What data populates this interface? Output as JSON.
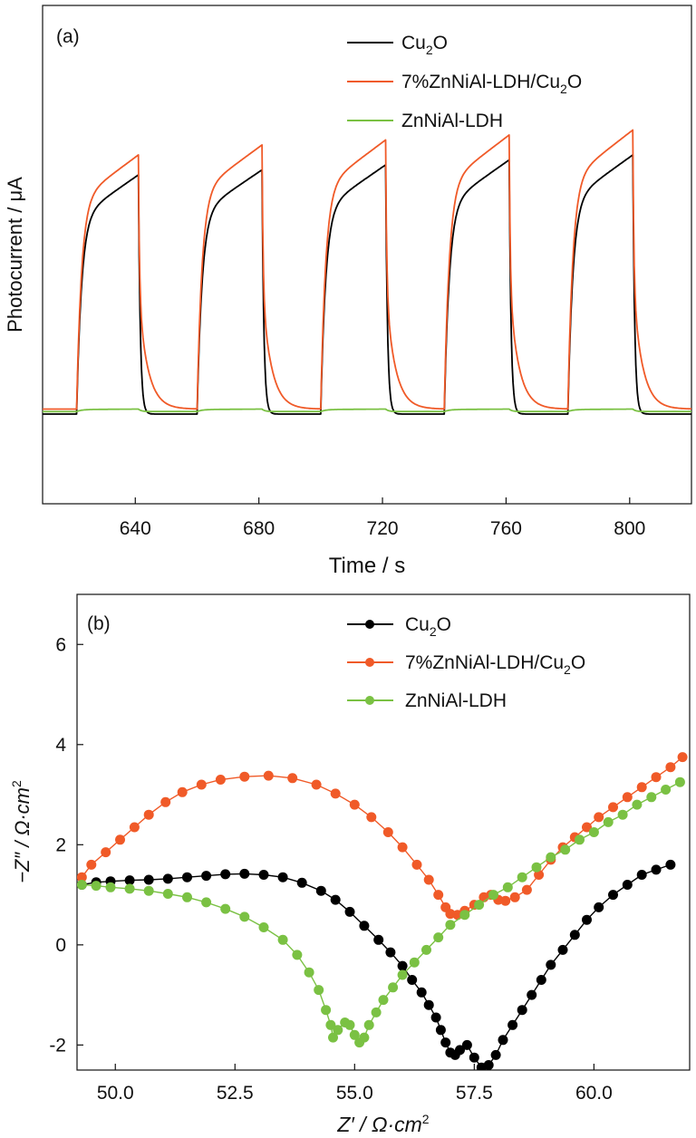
{
  "chart_data": [
    {
      "type": "line",
      "panel_label": "(a)",
      "xlabel": "Time / s",
      "ylabel": "Photocurrent / μA",
      "xlim": [
        610,
        820
      ],
      "ylim": [
        0,
        1
      ],
      "xticks": [
        "640",
        "680",
        "720",
        "760",
        "800"
      ],
      "xtick_values": [
        640,
        680,
        720,
        760,
        800
      ],
      "yticks_shown": false,
      "legend_placement": "top-right",
      "light_on_off": {
        "on_times": [
          621,
          660,
          700,
          740,
          780
        ],
        "off_times": [
          641,
          681,
          721,
          761,
          801
        ]
      },
      "series": [
        {
          "name": "Cu2O",
          "legend_label": "Cu",
          "legend_sub": "2",
          "legend_tail": "O",
          "color": "#000000",
          "baseline": 0.18,
          "peak_values": [
            0.66,
            0.67,
            0.68,
            0.69,
            0.7
          ],
          "fall_tau": 0.6
        },
        {
          "name": "7%ZnNiAl-LDH/Cu2O",
          "legend_label": "7%ZnNiAl-LDH/Cu",
          "legend_sub": "2",
          "legend_tail": "O",
          "color": "#f05a28",
          "baseline": 0.19,
          "peak_values": [
            0.7,
            0.72,
            0.73,
            0.74,
            0.75
          ],
          "fall_tau": 3.0
        },
        {
          "name": "ZnNiAl-LDH",
          "legend_label": "ZnNiAl-LDH",
          "legend_sub": "",
          "legend_tail": "",
          "color": "#7ac143",
          "baseline": 0.185,
          "peak_values": [
            0.19,
            0.19,
            0.19,
            0.19,
            0.19
          ],
          "fall_tau": 1.0
        }
      ]
    },
    {
      "type": "scatter",
      "panel_label": "(b)",
      "xlabel_main": "Z′ / Ω·cm",
      "xlabel_sup": "2",
      "ylabel_main": "−Z″ / Ω·cm",
      "ylabel_sup": "2",
      "xlim": [
        49.2,
        62.0
      ],
      "ylim": [
        -2.5,
        7.0
      ],
      "xticks": [
        "50.0",
        "52.5",
        "55.0",
        "57.5",
        "60.0"
      ],
      "xtick_values": [
        50.0,
        52.5,
        55.0,
        57.5,
        60.0
      ],
      "yticks": [
        "-2",
        "0",
        "2",
        "4",
        "6"
      ],
      "ytick_values": [
        -2,
        0,
        2,
        4,
        6
      ],
      "legend_placement": "top-right",
      "series": [
        {
          "name": "Cu2O",
          "legend_label": "Cu",
          "legend_sub": "2",
          "legend_tail": "O",
          "color": "#000000",
          "points": [
            [
              49.3,
              1.2
            ],
            [
              49.6,
              1.25
            ],
            [
              49.9,
              1.27
            ],
            [
              50.3,
              1.29
            ],
            [
              50.7,
              1.3
            ],
            [
              51.1,
              1.32
            ],
            [
              51.5,
              1.35
            ],
            [
              51.9,
              1.38
            ],
            [
              52.3,
              1.41
            ],
            [
              52.7,
              1.42
            ],
            [
              53.1,
              1.4
            ],
            [
              53.5,
              1.35
            ],
            [
              53.9,
              1.24
            ],
            [
              54.3,
              1.08
            ],
            [
              54.6,
              0.9
            ],
            [
              54.9,
              0.66
            ],
            [
              55.2,
              0.38
            ],
            [
              55.5,
              0.1
            ],
            [
              55.75,
              -0.15
            ],
            [
              56.0,
              -0.42
            ],
            [
              56.2,
              -0.7
            ],
            [
              56.4,
              -0.95
            ],
            [
              56.55,
              -1.2
            ],
            [
              56.7,
              -1.45
            ],
            [
              56.8,
              -1.7
            ],
            [
              56.9,
              -1.95
            ],
            [
              57.0,
              -2.15
            ],
            [
              57.1,
              -2.2
            ],
            [
              57.2,
              -2.1
            ],
            [
              57.35,
              -2.0
            ],
            [
              57.5,
              -2.25
            ],
            [
              57.65,
              -2.45
            ],
            [
              57.8,
              -2.4
            ],
            [
              57.95,
              -2.2
            ],
            [
              58.1,
              -1.9
            ],
            [
              58.3,
              -1.6
            ],
            [
              58.5,
              -1.3
            ],
            [
              58.7,
              -1.0
            ],
            [
              58.9,
              -0.7
            ],
            [
              59.1,
              -0.4
            ],
            [
              59.35,
              -0.1
            ],
            [
              59.6,
              0.2
            ],
            [
              59.85,
              0.5
            ],
            [
              60.1,
              0.75
            ],
            [
              60.4,
              1.0
            ],
            [
              60.7,
              1.2
            ],
            [
              61.0,
              1.4
            ],
            [
              61.3,
              1.5
            ],
            [
              61.6,
              1.6
            ]
          ]
        },
        {
          "name": "7%ZnNiAl-LDH/Cu2O",
          "legend_label": "7%ZnNiAl-LDH/Cu",
          "legend_sub": "2",
          "legend_tail": "O",
          "color": "#f05a28",
          "points": [
            [
              49.3,
              1.35
            ],
            [
              49.5,
              1.6
            ],
            [
              49.8,
              1.85
            ],
            [
              50.1,
              2.1
            ],
            [
              50.4,
              2.35
            ],
            [
              50.7,
              2.6
            ],
            [
              51.05,
              2.85
            ],
            [
              51.4,
              3.05
            ],
            [
              51.8,
              3.2
            ],
            [
              52.2,
              3.3
            ],
            [
              52.7,
              3.36
            ],
            [
              53.2,
              3.38
            ],
            [
              53.7,
              3.33
            ],
            [
              54.2,
              3.2
            ],
            [
              54.6,
              3.02
            ],
            [
              55.0,
              2.8
            ],
            [
              55.35,
              2.55
            ],
            [
              55.7,
              2.25
            ],
            [
              56.0,
              1.95
            ],
            [
              56.3,
              1.6
            ],
            [
              56.55,
              1.3
            ],
            [
              56.75,
              1.0
            ],
            [
              56.9,
              0.75
            ],
            [
              57.0,
              0.62
            ],
            [
              57.15,
              0.6
            ],
            [
              57.3,
              0.68
            ],
            [
              57.5,
              0.8
            ],
            [
              57.7,
              0.95
            ],
            [
              57.85,
              1.0
            ],
            [
              58.0,
              0.9
            ],
            [
              58.15,
              0.88
            ],
            [
              58.35,
              0.95
            ],
            [
              58.6,
              1.1
            ],
            [
              58.85,
              1.4
            ],
            [
              59.1,
              1.7
            ],
            [
              59.35,
              1.95
            ],
            [
              59.6,
              2.15
            ],
            [
              59.85,
              2.35
            ],
            [
              60.1,
              2.55
            ],
            [
              60.4,
              2.75
            ],
            [
              60.7,
              2.95
            ],
            [
              61.0,
              3.15
            ],
            [
              61.3,
              3.35
            ],
            [
              61.6,
              3.55
            ],
            [
              61.85,
              3.75
            ]
          ]
        },
        {
          "name": "ZnNiAl-LDH",
          "legend_label": "ZnNiAl-LDH",
          "legend_sub": "",
          "legend_tail": "",
          "color": "#7ac143",
          "points": [
            [
              49.3,
              1.2
            ],
            [
              49.6,
              1.18
            ],
            [
              49.9,
              1.15
            ],
            [
              50.3,
              1.12
            ],
            [
              50.7,
              1.08
            ],
            [
              51.1,
              1.02
            ],
            [
              51.5,
              0.95
            ],
            [
              51.9,
              0.85
            ],
            [
              52.3,
              0.72
            ],
            [
              52.7,
              0.56
            ],
            [
              53.1,
              0.35
            ],
            [
              53.5,
              0.1
            ],
            [
              53.8,
              -0.2
            ],
            [
              54.05,
              -0.55
            ],
            [
              54.25,
              -0.9
            ],
            [
              54.4,
              -1.3
            ],
            [
              54.5,
              -1.6
            ],
            [
              54.55,
              -1.85
            ],
            [
              54.65,
              -1.7
            ],
            [
              54.8,
              -1.55
            ],
            [
              54.9,
              -1.6
            ],
            [
              55.0,
              -1.8
            ],
            [
              55.1,
              -1.95
            ],
            [
              55.2,
              -1.85
            ],
            [
              55.3,
              -1.6
            ],
            [
              55.45,
              -1.35
            ],
            [
              55.6,
              -1.1
            ],
            [
              55.8,
              -0.85
            ],
            [
              56.0,
              -0.6
            ],
            [
              56.25,
              -0.35
            ],
            [
              56.5,
              -0.1
            ],
            [
              56.75,
              0.15
            ],
            [
              57.0,
              0.4
            ],
            [
              57.3,
              0.6
            ],
            [
              57.6,
              0.8
            ],
            [
              57.9,
              1.0
            ],
            [
              58.2,
              1.15
            ],
            [
              58.5,
              1.35
            ],
            [
              58.8,
              1.55
            ],
            [
              59.1,
              1.75
            ],
            [
              59.4,
              1.9
            ],
            [
              59.7,
              2.1
            ],
            [
              60.0,
              2.25
            ],
            [
              60.3,
              2.45
            ],
            [
              60.6,
              2.6
            ],
            [
              60.9,
              2.8
            ],
            [
              61.2,
              2.95
            ],
            [
              61.5,
              3.1
            ],
            [
              61.8,
              3.25
            ]
          ]
        }
      ]
    }
  ]
}
